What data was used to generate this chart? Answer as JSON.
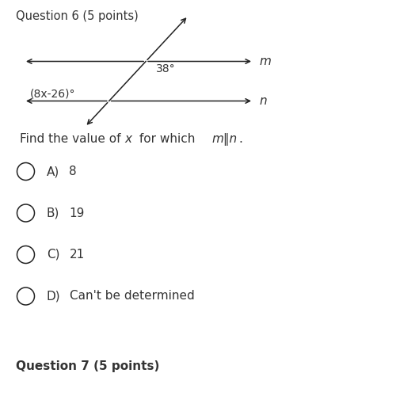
{
  "header": "Question 6 (5 points)",
  "angle_m": "38°",
  "angle_n": "(8x-26)°",
  "line_m_label": "m",
  "line_n_label": "n",
  "options": [
    {
      "letter": "A)",
      "value": "8"
    },
    {
      "letter": "B)",
      "value": "19"
    },
    {
      "letter": "C)",
      "value": "21"
    },
    {
      "letter": "D)",
      "value": "Can't be determined"
    }
  ],
  "footer": "Question 7 (5 points)",
  "bg_color": "#ffffff",
  "text_color": "#333333",
  "line_color": "#222222",
  "font_size_header": 10.5,
  "font_size_question": 11,
  "font_size_options": 11,
  "font_size_footer": 11,
  "font_size_diagram": 10,
  "font_size_labels": 11
}
